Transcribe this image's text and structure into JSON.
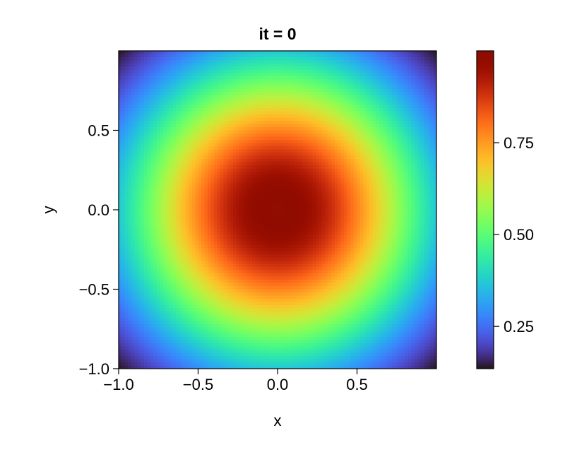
{
  "chart_data": {
    "type": "heatmap",
    "title": "it = 0",
    "xlabel": "x",
    "ylabel": "y",
    "xlim": [
      -1.0,
      1.0
    ],
    "ylim": [
      -1.0,
      1.0
    ],
    "x_ticks": [
      -1.0,
      -0.5,
      0.0,
      0.5
    ],
    "x_tick_labels": [
      "−1.0",
      "−0.5",
      "0.0",
      "0.5"
    ],
    "y_ticks": [
      -1.0,
      -0.5,
      0.0,
      0.5
    ],
    "y_tick_labels": [
      "−1.0",
      "−0.5",
      "0.0",
      "0.5"
    ],
    "grid_resolution": 100,
    "field": "exp(-(x^2 + y^2))",
    "colormap": "turbo",
    "colorbar": {
      "range": [
        0.135,
        1.0
      ],
      "ticks": [
        0.25,
        0.5,
        0.75
      ],
      "tick_labels": [
        "0.25",
        "0.50",
        "0.75"
      ],
      "placement": "right"
    },
    "grid": false
  }
}
